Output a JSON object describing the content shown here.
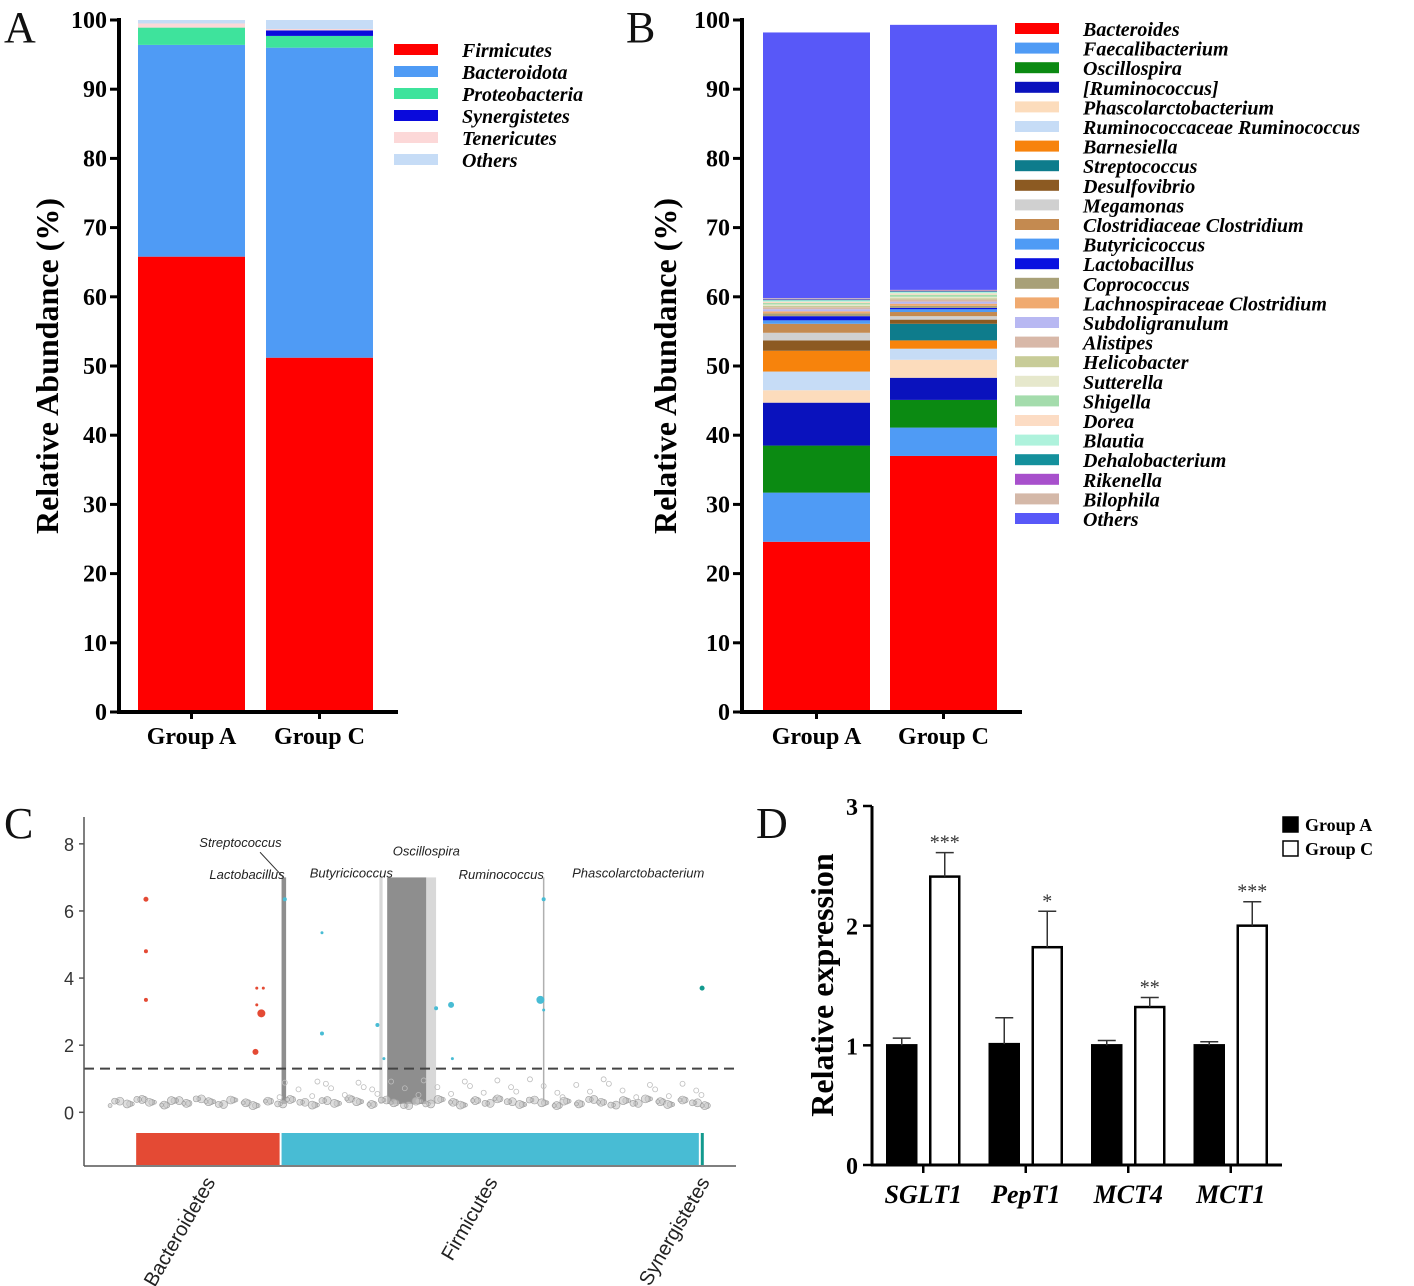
{
  "chart_data": [
    {
      "panel": "A",
      "type": "bar",
      "stacked": true,
      "ylabel": "Relative Abundance (%)",
      "ylim": [
        0,
        100
      ],
      "yticks": [
        0,
        10,
        20,
        30,
        40,
        50,
        60,
        70,
        80,
        90,
        100
      ],
      "categories": [
        "Group A",
        "Group C"
      ],
      "series": [
        {
          "name": "Firmicutes",
          "color": "#ff0000",
          "values": [
            65.8,
            51.2
          ]
        },
        {
          "name": "Bacteroidota",
          "color": "#4f9bf5",
          "values": [
            30.6,
            44.8
          ]
        },
        {
          "name": "Proteobacteria",
          "color": "#3ee39c",
          "values": [
            2.5,
            1.7
          ]
        },
        {
          "name": "Synergistetes",
          "color": "#0a0adc",
          "values": [
            0.0,
            0.8
          ]
        },
        {
          "name": "Tenericutes",
          "color": "#fcd8d8",
          "values": [
            0.6,
            0.2
          ]
        },
        {
          "name": "Others",
          "color": "#c6dcf6",
          "values": [
            0.5,
            1.3
          ]
        }
      ]
    },
    {
      "panel": "B",
      "type": "bar",
      "stacked": true,
      "ylabel": "Relative Abundance (%)",
      "ylim": [
        0,
        100
      ],
      "yticks": [
        0,
        10,
        20,
        30,
        40,
        50,
        60,
        70,
        80,
        90,
        100
      ],
      "categories": [
        "Group A",
        "Group C"
      ],
      "series": [
        {
          "name": "Bacteroides",
          "color": "#ff0000",
          "values": [
            24.6,
            37.0
          ]
        },
        {
          "name": "Faecalibacterium",
          "color": "#4f9bf5",
          "values": [
            7.1,
            4.1
          ]
        },
        {
          "name": "Oscillospira",
          "color": "#0b8a12",
          "values": [
            6.8,
            4.0
          ]
        },
        {
          "name": "[Ruminococcus]",
          "color": "#0a12bd",
          "values": [
            6.2,
            3.2
          ]
        },
        {
          "name": "Phascolarctobacterium",
          "color": "#fcdcbc",
          "values": [
            1.8,
            2.6
          ]
        },
        {
          "name": "Ruminococcaceae  Ruminococcus",
          "color": "#c6dcf6",
          "values": [
            2.7,
            1.6
          ]
        },
        {
          "name": "Barnesiella",
          "color": "#f7830c",
          "values": [
            3.0,
            1.2
          ]
        },
        {
          "name": "Streptococcus",
          "color": "#0e7c8c",
          "values": [
            0.0,
            2.4
          ]
        },
        {
          "name": "Desulfovibrio",
          "color": "#8c5a22",
          "values": [
            1.5,
            0.6
          ]
        },
        {
          "name": "Megamonas",
          "color": "#d0d0d0",
          "values": [
            1.1,
            0.5
          ]
        },
        {
          "name": "Clostridiaceae  Clostridium",
          "color": "#c48a50",
          "values": [
            1.3,
            0.6
          ]
        },
        {
          "name": "Butyricicoccus",
          "color": "#4f9bf5",
          "values": [
            0.5,
            0.4
          ]
        },
        {
          "name": "Lactobacillus",
          "color": "#0a12e0",
          "values": [
            0.6,
            0.2
          ]
        },
        {
          "name": "Coprococcus",
          "color": "#a8a078",
          "values": [
            0.4,
            0.3
          ]
        },
        {
          "name": "Lachnospiraceae  Clostridium",
          "color": "#f0aa70",
          "values": [
            0.3,
            0.3
          ]
        },
        {
          "name": "Subdoligranulum",
          "color": "#b8b8f2",
          "values": [
            0.3,
            0.3
          ]
        },
        {
          "name": "Alistipes",
          "color": "#d8b8a8",
          "values": [
            0.3,
            0.3
          ]
        },
        {
          "name": "Helicobacter",
          "color": "#c8cc98",
          "values": [
            0.2,
            0.2
          ]
        },
        {
          "name": "Sutterella",
          "color": "#e6e8cc",
          "values": [
            0.2,
            0.2
          ]
        },
        {
          "name": "Shigella",
          "color": "#a4dcac",
          "values": [
            0.2,
            0.3
          ]
        },
        {
          "name": "Dorea",
          "color": "#fcdcc4",
          "values": [
            0.2,
            0.2
          ]
        },
        {
          "name": "Blautia",
          "color": "#aef2dc",
          "values": [
            0.2,
            0.2
          ]
        },
        {
          "name": "Dehalobacterium",
          "color": "#14909c",
          "values": [
            0.1,
            0.1
          ]
        },
        {
          "name": "Rikenella",
          "color": "#a850cc",
          "values": [
            0.1,
            0.1
          ]
        },
        {
          "name": "Bilophila",
          "color": "#d4b8a8",
          "values": [
            0.1,
            0.1
          ]
        },
        {
          "name": "Others",
          "color": "#5858f8",
          "values": [
            38.4,
            38.3
          ]
        }
      ]
    },
    {
      "panel": "C",
      "type": "scatter",
      "subtype": "manhattan",
      "ylim": [
        -1.6,
        8.8
      ],
      "yticks": [
        0,
        2,
        4,
        6,
        8
      ],
      "threshold": 1.3,
      "xlim": [
        0,
        100
      ],
      "phyla": [
        {
          "name": "Bacteroidetes",
          "color": "#e44a34",
          "range": [
            8,
            30
          ]
        },
        {
          "name": "Firmicutes",
          "color": "#48bcd4",
          "range": [
            30.3,
            94.3
          ]
        },
        {
          "name": "Synergistetes",
          "color": "#129a8e",
          "range": [
            94.6,
            95
          ]
        }
      ],
      "annotations": [
        {
          "label": "Streptococcus",
          "x": 31,
          "y": 7.0,
          "label_y": 8.05
        },
        {
          "label": "Lactobacillus",
          "x": 31,
          "y": 7.0,
          "label_y": 7.1
        },
        {
          "label": "Butyricicoccus",
          "x": 31.5,
          "y": 7.0,
          "label_y": 7.15
        },
        {
          "label": "Oscillospira",
          "x": 51,
          "y": 7.0,
          "label_y": 7.8
        },
        {
          "label": "Ruminococcus",
          "x": 53,
          "y": 7.0,
          "label_y": 7.1
        },
        {
          "label": "Phascolarctobacterium",
          "x": 70.5,
          "y": 7.0,
          "label_y": 7.15
        }
      ],
      "highlights": [
        {
          "x0": 45.3,
          "x1": 45.8,
          "shade": "light"
        },
        {
          "x0": 46.5,
          "x1": 52.5,
          "shade": "dark"
        },
        {
          "x0": 52.5,
          "x1": 54.0,
          "shade": "light"
        },
        {
          "x0": 30.3,
          "x1": 31.0,
          "shade": "dark"
        }
      ],
      "points": [
        {
          "x": 9.5,
          "y": 6.35,
          "phylum": "Bacteroidetes",
          "r": 2.5
        },
        {
          "x": 9.5,
          "y": 4.8,
          "phylum": "Bacteroidetes",
          "r": 2
        },
        {
          "x": 9.5,
          "y": 3.35,
          "phylum": "Bacteroidetes",
          "r": 2
        },
        {
          "x": 26.5,
          "y": 3.7,
          "phylum": "Bacteroidetes",
          "r": 1.5
        },
        {
          "x": 27.5,
          "y": 3.7,
          "phylum": "Bacteroidetes",
          "r": 1.5
        },
        {
          "x": 26.5,
          "y": 3.2,
          "phylum": "Bacteroidetes",
          "r": 1.5
        },
        {
          "x": 27.2,
          "y": 2.95,
          "phylum": "Bacteroidetes",
          "r": 4
        },
        {
          "x": 26.3,
          "y": 1.8,
          "phylum": "Bacteroidetes",
          "r": 3
        },
        {
          "x": 30.8,
          "y": 6.35,
          "phylum": "Firmicutes",
          "r": 2
        },
        {
          "x": 36.5,
          "y": 5.35,
          "phylum": "Firmicutes",
          "r": 1.5
        },
        {
          "x": 36.5,
          "y": 2.35,
          "phylum": "Firmicutes",
          "r": 2
        },
        {
          "x": 45.0,
          "y": 2.6,
          "phylum": "Firmicutes",
          "r": 2
        },
        {
          "x": 46.0,
          "y": 1.6,
          "phylum": "Firmicutes",
          "r": 1.5
        },
        {
          "x": 54.0,
          "y": 3.1,
          "phylum": "Firmicutes",
          "r": 2
        },
        {
          "x": 56.3,
          "y": 3.2,
          "phylum": "Firmicutes",
          "r": 3
        },
        {
          "x": 56.5,
          "y": 1.6,
          "phylum": "Firmicutes",
          "r": 1.5
        },
        {
          "x": 70.0,
          "y": 3.35,
          "phylum": "Firmicutes",
          "r": 4
        },
        {
          "x": 70.5,
          "y": 6.35,
          "phylum": "Firmicutes",
          "r": 2
        },
        {
          "x": 70.5,
          "y": 3.05,
          "phylum": "Firmicutes",
          "r": 1.5
        },
        {
          "x": 94.8,
          "y": 3.7,
          "phylum": "Synergistetes",
          "r": 2.5
        }
      ]
    },
    {
      "panel": "D",
      "type": "bar",
      "ylabel": "Relative expression",
      "ylim": [
        0,
        3
      ],
      "yticks": [
        0,
        1,
        2,
        3
      ],
      "categories": [
        "SGLT1",
        "PepT1",
        "MCT4",
        "MCT1"
      ],
      "series": [
        {
          "name": "Group A",
          "fill": "#000000",
          "values": [
            1.0,
            1.01,
            1.0,
            1.0
          ],
          "errors": [
            0.06,
            0.22,
            0.04,
            0.03
          ]
        },
        {
          "name": "Group C",
          "fill": "#ffffff",
          "values": [
            2.41,
            1.82,
            1.32,
            2.0
          ],
          "errors": [
            0.2,
            0.3,
            0.08,
            0.2
          ]
        }
      ],
      "significance": [
        "***",
        "*",
        "**",
        "***"
      ]
    }
  ],
  "panel_labels": [
    "A",
    "B",
    "C",
    "D"
  ]
}
